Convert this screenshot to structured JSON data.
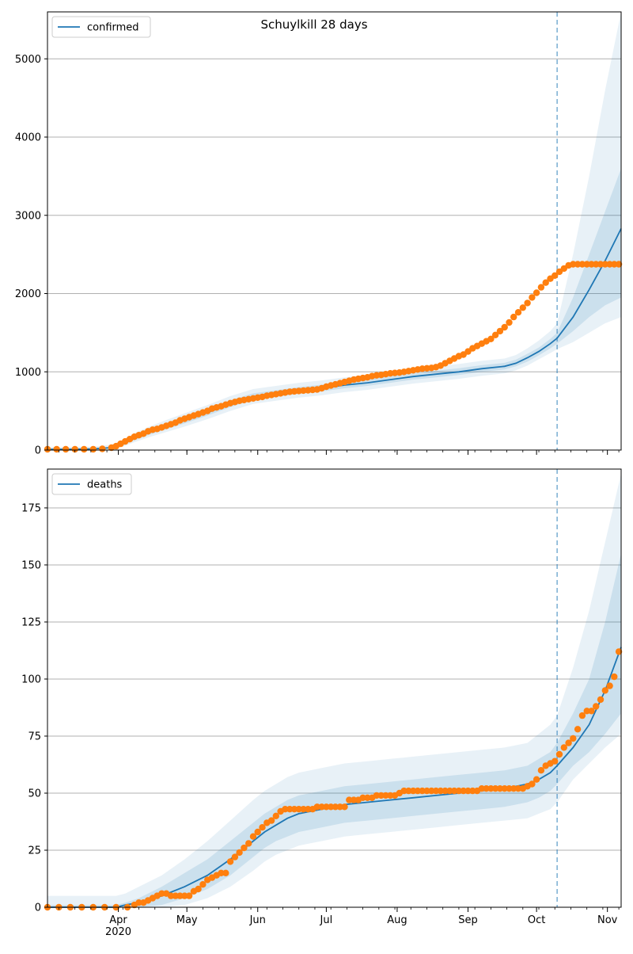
{
  "figure": {
    "title": "Schuylkill 28 days"
  },
  "colors": {
    "model_line": "#1f77b4",
    "observed_points": "#ff7f0e",
    "band": "#1f77b4",
    "forecast_line": "#1f77b4",
    "grid": "#b0b0b0"
  },
  "x_axis": {
    "tick_labels": [
      "Apr",
      "May",
      "Jun",
      "Jul",
      "Aug",
      "Sep",
      "Oct",
      "Nov"
    ],
    "year_label": "2020"
  },
  "chart_data": [
    {
      "type": "line",
      "title": "Schuylkill 28 days",
      "legend": "confirmed",
      "legend_position": "top-left",
      "xlabel": "",
      "ylabel": "",
      "xlim": [
        0,
        251
      ],
      "ylim": [
        0,
        5600
      ],
      "yticks": [
        0,
        1000,
        2000,
        3000,
        4000,
        5000
      ],
      "ytick_labels": [
        "0",
        "1000",
        "2000",
        "3000",
        "4000",
        "5000"
      ],
      "grid": "y",
      "forecast_start_day": 223,
      "model": {
        "x": [
          0,
          10,
          20,
          28,
          33,
          38,
          45,
          52,
          60,
          70,
          80,
          90,
          100,
          110,
          120,
          130,
          140,
          150,
          160,
          170,
          180,
          190,
          200,
          205,
          210,
          215,
          220,
          223,
          230,
          237,
          244,
          251
        ],
        "y": [
          10,
          10,
          15,
          30,
          80,
          150,
          230,
          300,
          380,
          480,
          590,
          680,
          720,
          760,
          790,
          830,
          860,
          900,
          940,
          970,
          1000,
          1040,
          1070,
          1110,
          1180,
          1260,
          1360,
          1430,
          1700,
          2050,
          2420,
          2830
        ]
      },
      "band_inner": {
        "lower": [
          5,
          5,
          8,
          20,
          60,
          125,
          200,
          265,
          340,
          440,
          550,
          640,
          680,
          720,
          750,
          790,
          820,
          860,
          900,
          930,
          960,
          1000,
          1030,
          1070,
          1130,
          1210,
          1300,
          1360,
          1520,
          1700,
          1850,
          1950
        ],
        "upper": [
          20,
          20,
          25,
          45,
          100,
          180,
          265,
          340,
          420,
          525,
          635,
          725,
          765,
          805,
          835,
          875,
          905,
          945,
          985,
          1015,
          1045,
          1085,
          1115,
          1155,
          1230,
          1310,
          1420,
          1500,
          1950,
          2500,
          3050,
          3600
        ]
      },
      "band_outer": {
        "lower": [
          0,
          0,
          0,
          10,
          45,
          100,
          170,
          230,
          300,
          395,
          500,
          590,
          630,
          670,
          700,
          740,
          770,
          810,
          850,
          880,
          910,
          950,
          980,
          1020,
          1080,
          1160,
          1240,
          1290,
          1380,
          1500,
          1620,
          1700
        ],
        "upper": [
          40,
          40,
          45,
          70,
          130,
          215,
          305,
          385,
          470,
          575,
          690,
          780,
          820,
          860,
          890,
          930,
          960,
          1000,
          1040,
          1070,
          1100,
          1140,
          1170,
          1215,
          1300,
          1400,
          1520,
          1620,
          2500,
          3500,
          4600,
          5600
        ]
      },
      "observed": {
        "x": [
          0,
          4,
          8,
          12,
          16,
          20,
          24,
          28,
          30,
          32,
          34,
          36,
          38,
          40,
          42,
          44,
          46,
          48,
          50,
          52,
          54,
          56,
          58,
          60,
          62,
          64,
          66,
          68,
          70,
          72,
          74,
          76,
          78,
          80,
          82,
          84,
          86,
          88,
          90,
          92,
          94,
          96,
          98,
          100,
          102,
          104,
          106,
          108,
          110,
          112,
          114,
          116,
          118,
          120,
          122,
          124,
          126,
          128,
          130,
          132,
          134,
          136,
          138,
          140,
          142,
          144,
          146,
          148,
          150,
          152,
          154,
          156,
          158,
          160,
          162,
          164,
          166,
          168,
          170,
          172,
          174,
          176,
          178,
          180,
          182,
          184,
          186,
          188,
          190,
          192,
          194,
          196,
          198,
          200,
          202,
          204,
          206,
          208,
          210,
          212,
          214,
          216,
          218,
          220,
          222,
          224,
          226,
          228,
          230,
          232,
          234,
          236,
          238,
          240,
          242,
          244,
          246,
          248,
          250
        ],
        "y": [
          10,
          10,
          10,
          10,
          10,
          10,
          15,
          30,
          50,
          80,
          110,
          140,
          170,
          190,
          210,
          240,
          260,
          270,
          290,
          310,
          330,
          350,
          380,
          400,
          420,
          440,
          460,
          480,
          500,
          530,
          545,
          560,
          580,
          600,
          615,
          630,
          640,
          650,
          660,
          670,
          680,
          695,
          705,
          715,
          725,
          735,
          745,
          750,
          755,
          760,
          765,
          770,
          775,
          790,
          810,
          825,
          840,
          855,
          870,
          885,
          900,
          910,
          920,
          930,
          945,
          955,
          960,
          970,
          980,
          985,
          990,
          1000,
          1010,
          1020,
          1030,
          1040,
          1045,
          1050,
          1060,
          1080,
          1110,
          1140,
          1170,
          1200,
          1220,
          1260,
          1300,
          1330,
          1360,
          1390,
          1420,
          1470,
          1520,
          1570,
          1630,
          1700,
          1760,
          1820,
          1880,
          1950,
          2010,
          2080,
          2140,
          2190,
          2230,
          2280,
          2320,
          2360,
          2375,
          2375,
          2375,
          2375,
          2375,
          2375,
          2375,
          2375,
          2375,
          2375,
          2375
        ]
      }
    },
    {
      "type": "line",
      "legend": "deaths",
      "legend_position": "top-left",
      "xlabel": "",
      "ylabel": "",
      "xlim": [
        0,
        251
      ],
      "ylim": [
        0,
        192
      ],
      "yticks": [
        0,
        25,
        50,
        75,
        100,
        125,
        150,
        175
      ],
      "ytick_labels": [
        "0",
        "25",
        "50",
        "75",
        "100",
        "125",
        "150",
        "175"
      ],
      "grid": "y",
      "forecast_start_day": 223,
      "model": {
        "x": [
          0,
          10,
          20,
          30,
          34,
          40,
          50,
          60,
          70,
          80,
          90,
          95,
          100,
          105,
          110,
          120,
          130,
          140,
          150,
          160,
          170,
          180,
          190,
          200,
          210,
          215,
          220,
          223,
          230,
          237,
          244,
          251
        ],
        "y": [
          0,
          0,
          0,
          0,
          1,
          2,
          5,
          9,
          14,
          21,
          29,
          33,
          36,
          39,
          41,
          43,
          45,
          46,
          47,
          48,
          49,
          50,
          51,
          52,
          54,
          56,
          59,
          62,
          70,
          80,
          95,
          114
        ]
      },
      "band_inner": {
        "lower": [
          0,
          0,
          0,
          0,
          0,
          0,
          1,
          4,
          8,
          14,
          22,
          26,
          29,
          31,
          33,
          35,
          37,
          38,
          39,
          40,
          41,
          42,
          43,
          44,
          46,
          48,
          51,
          54,
          62,
          68,
          76,
          85
        ],
        "upper": [
          1,
          1,
          1,
          1,
          2,
          4,
          9,
          15,
          21,
          29,
          37,
          41,
          44,
          47,
          49,
          51,
          53,
          54,
          55,
          56,
          57,
          58,
          59,
          60,
          62,
          65,
          68,
          72,
          85,
          100,
          125,
          155
        ]
      },
      "band_outer": {
        "lower": [
          0,
          0,
          0,
          0,
          0,
          0,
          0,
          1,
          4,
          9,
          16,
          20,
          23,
          25,
          27,
          29,
          31,
          32,
          33,
          34,
          35,
          36,
          37,
          38,
          39,
          41,
          43,
          46,
          56,
          63,
          70,
          76
        ],
        "upper": [
          5,
          5,
          5,
          5,
          6,
          9,
          14,
          21,
          29,
          38,
          47,
          51,
          54,
          57,
          59,
          61,
          63,
          64,
          65,
          66,
          67,
          68,
          69,
          70,
          72,
          76,
          80,
          84,
          105,
          130,
          160,
          190
        ]
      },
      "observed": {
        "x": [
          0,
          5,
          10,
          15,
          20,
          25,
          30,
          35,
          38,
          40,
          42,
          44,
          46,
          48,
          50,
          52,
          54,
          56,
          58,
          60,
          62,
          64,
          66,
          68,
          70,
          72,
          74,
          76,
          78,
          80,
          82,
          84,
          86,
          88,
          90,
          92,
          94,
          96,
          98,
          100,
          102,
          104,
          106,
          108,
          110,
          112,
          114,
          116,
          118,
          120,
          122,
          124,
          126,
          128,
          130,
          132,
          134,
          136,
          138,
          140,
          142,
          144,
          146,
          148,
          150,
          152,
          154,
          156,
          158,
          160,
          162,
          164,
          166,
          168,
          170,
          172,
          174,
          176,
          178,
          180,
          182,
          184,
          186,
          188,
          190,
          192,
          194,
          196,
          198,
          200,
          202,
          204,
          206,
          208,
          210,
          212,
          214,
          216,
          218,
          220,
          222,
          224,
          226,
          228,
          230,
          232,
          234,
          236,
          238,
          240,
          242,
          244,
          246,
          248,
          250
        ],
        "y": [
          0,
          0,
          0,
          0,
          0,
          0,
          0,
          0,
          1,
          2,
          2,
          3,
          4,
          5,
          6,
          6,
          5,
          5,
          5,
          5,
          5,
          7,
          8,
          10,
          12,
          13,
          14,
          15,
          15,
          20,
          22,
          24,
          26,
          28,
          31,
          33,
          35,
          37,
          38,
          40,
          42,
          43,
          43,
          43,
          43,
          43,
          43,
          43,
          44,
          44,
          44,
          44,
          44,
          44,
          44,
          47,
          47,
          47,
          48,
          48,
          48,
          49,
          49,
          49,
          49,
          49,
          50,
          51,
          51,
          51,
          51,
          51,
          51,
          51,
          51,
          51,
          51,
          51,
          51,
          51,
          51,
          51,
          51,
          51,
          52,
          52,
          52,
          52,
          52,
          52,
          52,
          52,
          52,
          52,
          53,
          54,
          56,
          60,
          62,
          63,
          64,
          67,
          70,
          72,
          74,
          78,
          84,
          86,
          86,
          88,
          91,
          95,
          97,
          101,
          112
        ]
      }
    }
  ]
}
